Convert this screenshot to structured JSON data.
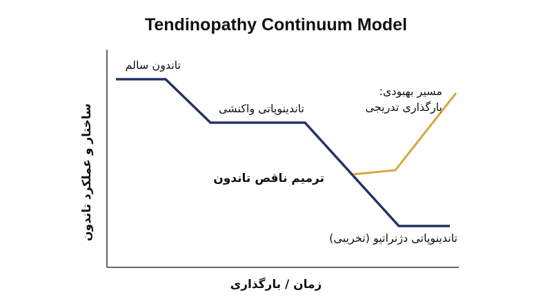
{
  "title": "Tendinopathy Continuum Model",
  "axes": {
    "x_label": "زمان / بارگذاری",
    "y_label": "ساختار و عملکرد تاندون"
  },
  "labels": {
    "healthy": "تاندون سالم",
    "reactive": "تاندینوپاتی واکنشی",
    "repair": "ترمیم ناقص تاندون",
    "degenerative": "تاندینوپاتی دژنراتیو (تخریبی)",
    "recovery_line1": "مسیر بهبودی:",
    "recovery_line2": "بارگذاری تدریجی"
  },
  "colors": {
    "main_path": "#233162",
    "recovery_path": "#d7a53c",
    "axis": "#333333"
  }
}
